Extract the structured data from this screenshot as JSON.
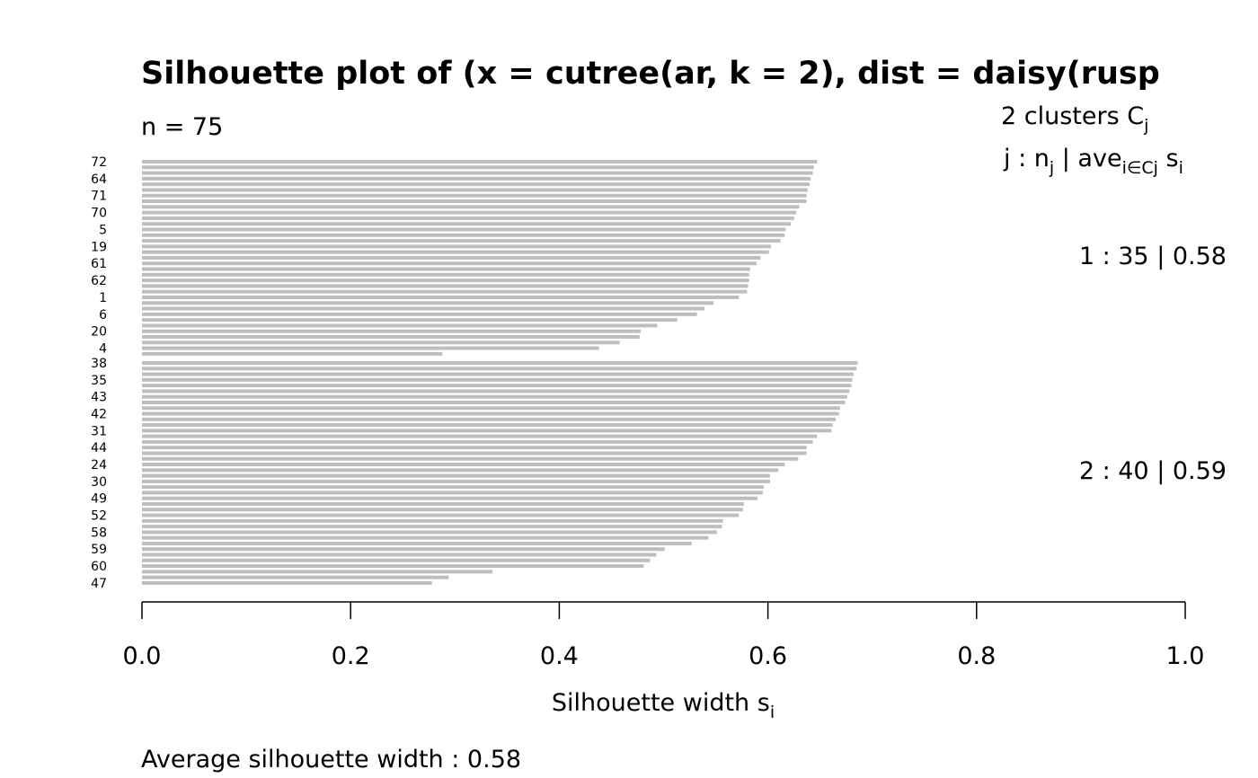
{
  "chart_data": {
    "type": "bar",
    "orientation": "horizontal",
    "title": "Silhouette plot of (x = cutree(ar, k = 2), dist = daisy(rusp",
    "n_label": "n = 75",
    "xlabel": "Silhouette width",
    "xlabel_sub": "i",
    "xlabel_main_symbol": "s",
    "xlim": [
      0,
      1
    ],
    "x_ticks": [
      "0.0",
      "0.2",
      "0.4",
      "0.6",
      "0.8",
      "1.0"
    ],
    "bar_color": "#bebebe",
    "legend": {
      "header1": "2  clusters  C",
      "header1_sub": "j",
      "header2_a": "j :  n",
      "header2_sub1": "j",
      "header2_b": " | ave",
      "header2_sub2": "i∈Cj",
      "header2_c": "  s",
      "header2_sub3": "i"
    },
    "clusters": [
      {
        "summary": "1 :   35  |  0.58",
        "n": 35,
        "avg_width": 0.58,
        "labels": [
          "72",
          "",
          "",
          "64",
          "",
          "",
          "71",
          "",
          "",
          "70",
          "",
          "",
          "5",
          "",
          "",
          "19",
          "",
          "",
          "61",
          "",
          "",
          "62",
          "",
          "",
          "1",
          "",
          "",
          "6",
          "",
          "",
          "20",
          "",
          "",
          "4",
          ""
        ],
        "values": [
          0.647,
          0.644,
          0.643,
          0.641,
          0.64,
          0.638,
          0.637,
          0.637,
          0.63,
          0.627,
          0.625,
          0.622,
          0.617,
          0.616,
          0.612,
          0.603,
          0.601,
          0.593,
          0.589,
          0.583,
          0.582,
          0.582,
          0.581,
          0.58,
          0.572,
          0.548,
          0.539,
          0.532,
          0.513,
          0.494,
          0.478,
          0.477,
          0.458,
          0.438,
          0.288
        ]
      },
      {
        "summary": "2 :   40  |  0.59",
        "n": 40,
        "avg_width": 0.59,
        "labels": [
          "38",
          "",
          "",
          "35",
          "",
          "",
          "43",
          "",
          "",
          "42",
          "",
          "",
          "31",
          "",
          "",
          "44",
          "",
          "",
          "24",
          "",
          "",
          "30",
          "",
          "",
          "49",
          "",
          "",
          "52",
          "",
          "",
          "58",
          "",
          "",
          "59",
          "",
          "",
          "60",
          "",
          "",
          "47"
        ],
        "values": [
          0.686,
          0.685,
          0.682,
          0.681,
          0.68,
          0.678,
          0.676,
          0.674,
          0.669,
          0.668,
          0.665,
          0.662,
          0.661,
          0.647,
          0.643,
          0.637,
          0.637,
          0.629,
          0.616,
          0.61,
          0.602,
          0.602,
          0.596,
          0.595,
          0.59,
          0.577,
          0.576,
          0.572,
          0.557,
          0.556,
          0.551,
          0.543,
          0.527,
          0.501,
          0.493,
          0.487,
          0.481,
          0.336,
          0.294,
          0.278
        ]
      }
    ],
    "footer": "Average silhouette width :  0.58"
  }
}
